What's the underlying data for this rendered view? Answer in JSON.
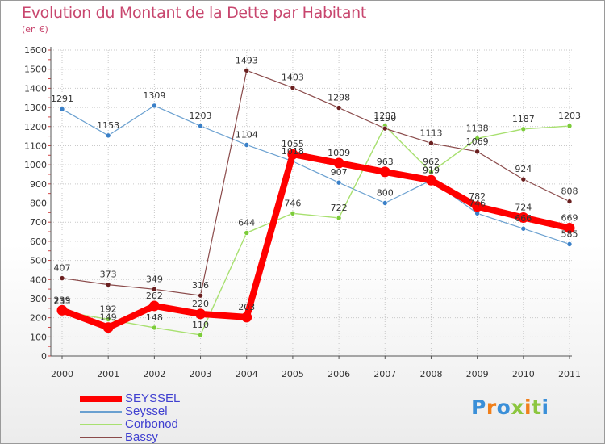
{
  "header": {
    "title": "Evolution du Montant de la Dette par Habitant",
    "subtitle": "(en €)"
  },
  "colors": {
    "title": "#c8466e",
    "legend_text": "#4040d0",
    "axis": "#555555",
    "grid": "#c9c9c9",
    "tick_text": "#333333",
    "label_text": "#333333"
  },
  "logo": {
    "letters": [
      {
        "char": "P",
        "color": "#3a8fd8"
      },
      {
        "char": "r",
        "color": "#f07f1a"
      },
      {
        "char": "o",
        "color": "#3a8fd8"
      },
      {
        "char": "x",
        "color": "#8cc63f"
      },
      {
        "char": "i",
        "color": "#f07f1a"
      },
      {
        "char": "t",
        "color": "#8cc63f"
      },
      {
        "char": "i",
        "color": "#3a8fd8"
      }
    ]
  },
  "chart_data": {
    "type": "line",
    "title": "Evolution du Montant de la Dette par Habitant",
    "subtitle": "(en €)",
    "xlabel": "",
    "ylabel": "",
    "x": [
      "2000",
      "2001",
      "2002",
      "2003",
      "2004",
      "2005",
      "2006",
      "2007",
      "2008",
      "2009",
      "2010",
      "2011"
    ],
    "ylim": [
      0,
      1600
    ],
    "yticks": [
      "0",
      "100",
      "200",
      "300",
      "400",
      "500",
      "600",
      "700",
      "800",
      "900",
      "1000",
      "1100",
      "1200",
      "1300",
      "1400",
      "1500",
      "1600"
    ],
    "grid": true,
    "legend_position": "bottom-left",
    "series": [
      {
        "name": "Seyssel",
        "color": "#6aa0d0",
        "stroke": 1.2,
        "marker": "#3a80c8",
        "values": [
          1291,
          1153,
          1309,
          1203,
          1104,
          1018,
          907,
          800,
          919,
          746,
          666,
          585
        ],
        "labels": [
          "1291",
          "1153",
          "1309",
          "1203",
          "1104",
          "1018",
          "907",
          "800",
          "919",
          "746",
          "666",
          "585"
        ]
      },
      {
        "name": "Corbonod",
        "color": "#a8e070",
        "stroke": 1.4,
        "marker": "#7ccc3a",
        "values": [
          233,
          192,
          148,
          110,
          644,
          746,
          722,
          1203,
          962,
          1138,
          1187,
          1203
        ],
        "labels": [
          "233",
          "192",
          "148",
          "110",
          "644",
          "746",
          "722",
          "1203",
          "962",
          "1138",
          "1187",
          "1203"
        ]
      },
      {
        "name": "Bassy",
        "color": "#8a4a4a",
        "stroke": 1.2,
        "marker": "#6a1f1f",
        "values": [
          407,
          373,
          349,
          316,
          1493,
          1403,
          1298,
          1190,
          1113,
          1069,
          924,
          808
        ],
        "labels": [
          "407",
          "373",
          "349",
          "316",
          "1493",
          "1403",
          "1298",
          "1190",
          "1113",
          "1069",
          "924",
          "808"
        ]
      },
      {
        "name": "SEYSSEL",
        "color": "#ff0000",
        "stroke": 8,
        "marker": "#ff0000",
        "values": [
          239,
          149,
          262,
          220,
          203,
          1055,
          1009,
          963,
          919,
          782,
          724,
          669
        ],
        "labels": [
          "239",
          "149",
          "262",
          "220",
          "203",
          "1055",
          "1009",
          "963",
          "919",
          "782",
          "724",
          "669"
        ]
      }
    ],
    "legend": [
      {
        "name": "SEYSSEL",
        "color": "#ff0000",
        "thickness": 8
      },
      {
        "name": "Seyssel",
        "color": "#6aa0d0",
        "thickness": 1.5
      },
      {
        "name": "Corbonod",
        "color": "#a8e070",
        "thickness": 1.5
      },
      {
        "name": "Bassy",
        "color": "#8a4a4a",
        "thickness": 1.5
      }
    ]
  }
}
